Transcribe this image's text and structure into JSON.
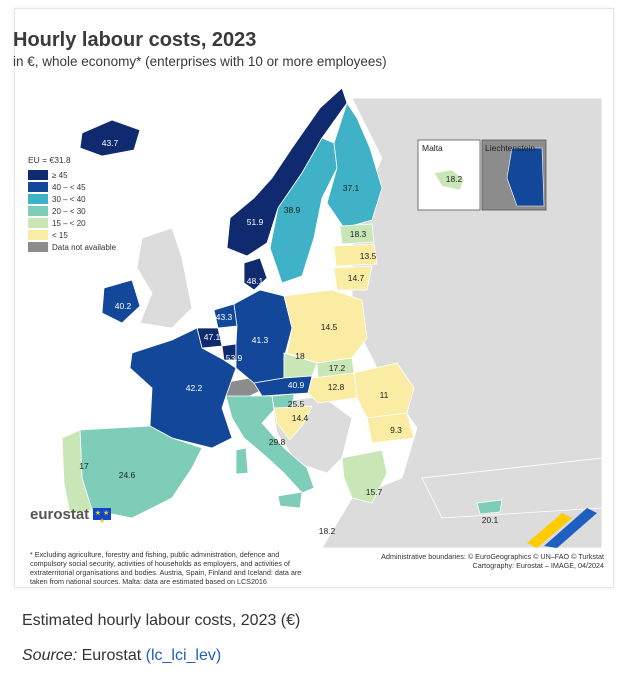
{
  "title": "Hourly labour costs, 2023",
  "subtitle": "in €, whole economy* (enterprises with 10 or more employees)",
  "legend": {
    "header": "EU = €31.8",
    "classes": [
      {
        "label": "≥ 45",
        "color": "#0f2a6e"
      },
      {
        "label": "40 – < 45",
        "color": "#12479a"
      },
      {
        "label": "30 – < 40",
        "color": "#3fb2c8"
      },
      {
        "label": "20 – < 30",
        "color": "#7ecdb8"
      },
      {
        "label": "15 – < 20",
        "color": "#c9e7b6"
      },
      {
        "label": "< 15",
        "color": "#fbeca3"
      },
      {
        "label": "Data not available",
        "color": "#8c8c8c"
      }
    ]
  },
  "insets": {
    "malta": "Malta",
    "liechtenstein": "Liechtenstein"
  },
  "values": {
    "iceland": "43.7",
    "norway": "51.9",
    "sweden": "38.9",
    "finland": "37.1",
    "estonia": "18.3",
    "latvia": "13.5",
    "lithuania": "14.7",
    "denmark": "48.1",
    "ireland": "40.2",
    "netherlands": "43.3",
    "belgium": "47.1",
    "luxembourg": "53.9",
    "germany": "41.3",
    "poland": "14.5",
    "czechia": "18",
    "slovakia": "17.2",
    "hungary": "12.8",
    "romania": "11",
    "bulgaria": "9.3",
    "austria": "40.9",
    "slovenia": "25.5",
    "croatia": "14.4",
    "france": "42.2",
    "italy": "29.8",
    "spain": "24.6",
    "portugal": "17",
    "greece": "15.7",
    "cyprus": "20.1",
    "malta": "18.2"
  },
  "eurostat": "eurostat",
  "eu_flag": "★ ★ ★",
  "footnote": "* Excluding agriculture, forestry and fishing, public administration, defence and compulsory social security, activities of households as employers, and activities of extraterritorial organisations and bodies. Austria, Spain, Finland and Iceland: data are taken from national sources. Malta: data are estimated based on LCS2016",
  "attribution_1": "Administrative boundaries: © EuroGeographics © UN–FAO © Turkstat",
  "attribution_2": "Cartography: Eurostat – IMAGE, 04/2024",
  "caption": "Estimated hourly labour costs, 2023 (€)",
  "source_label": "Source:",
  "source_text": "Eurostat",
  "source_link": "(lc_lci_lev)"
}
